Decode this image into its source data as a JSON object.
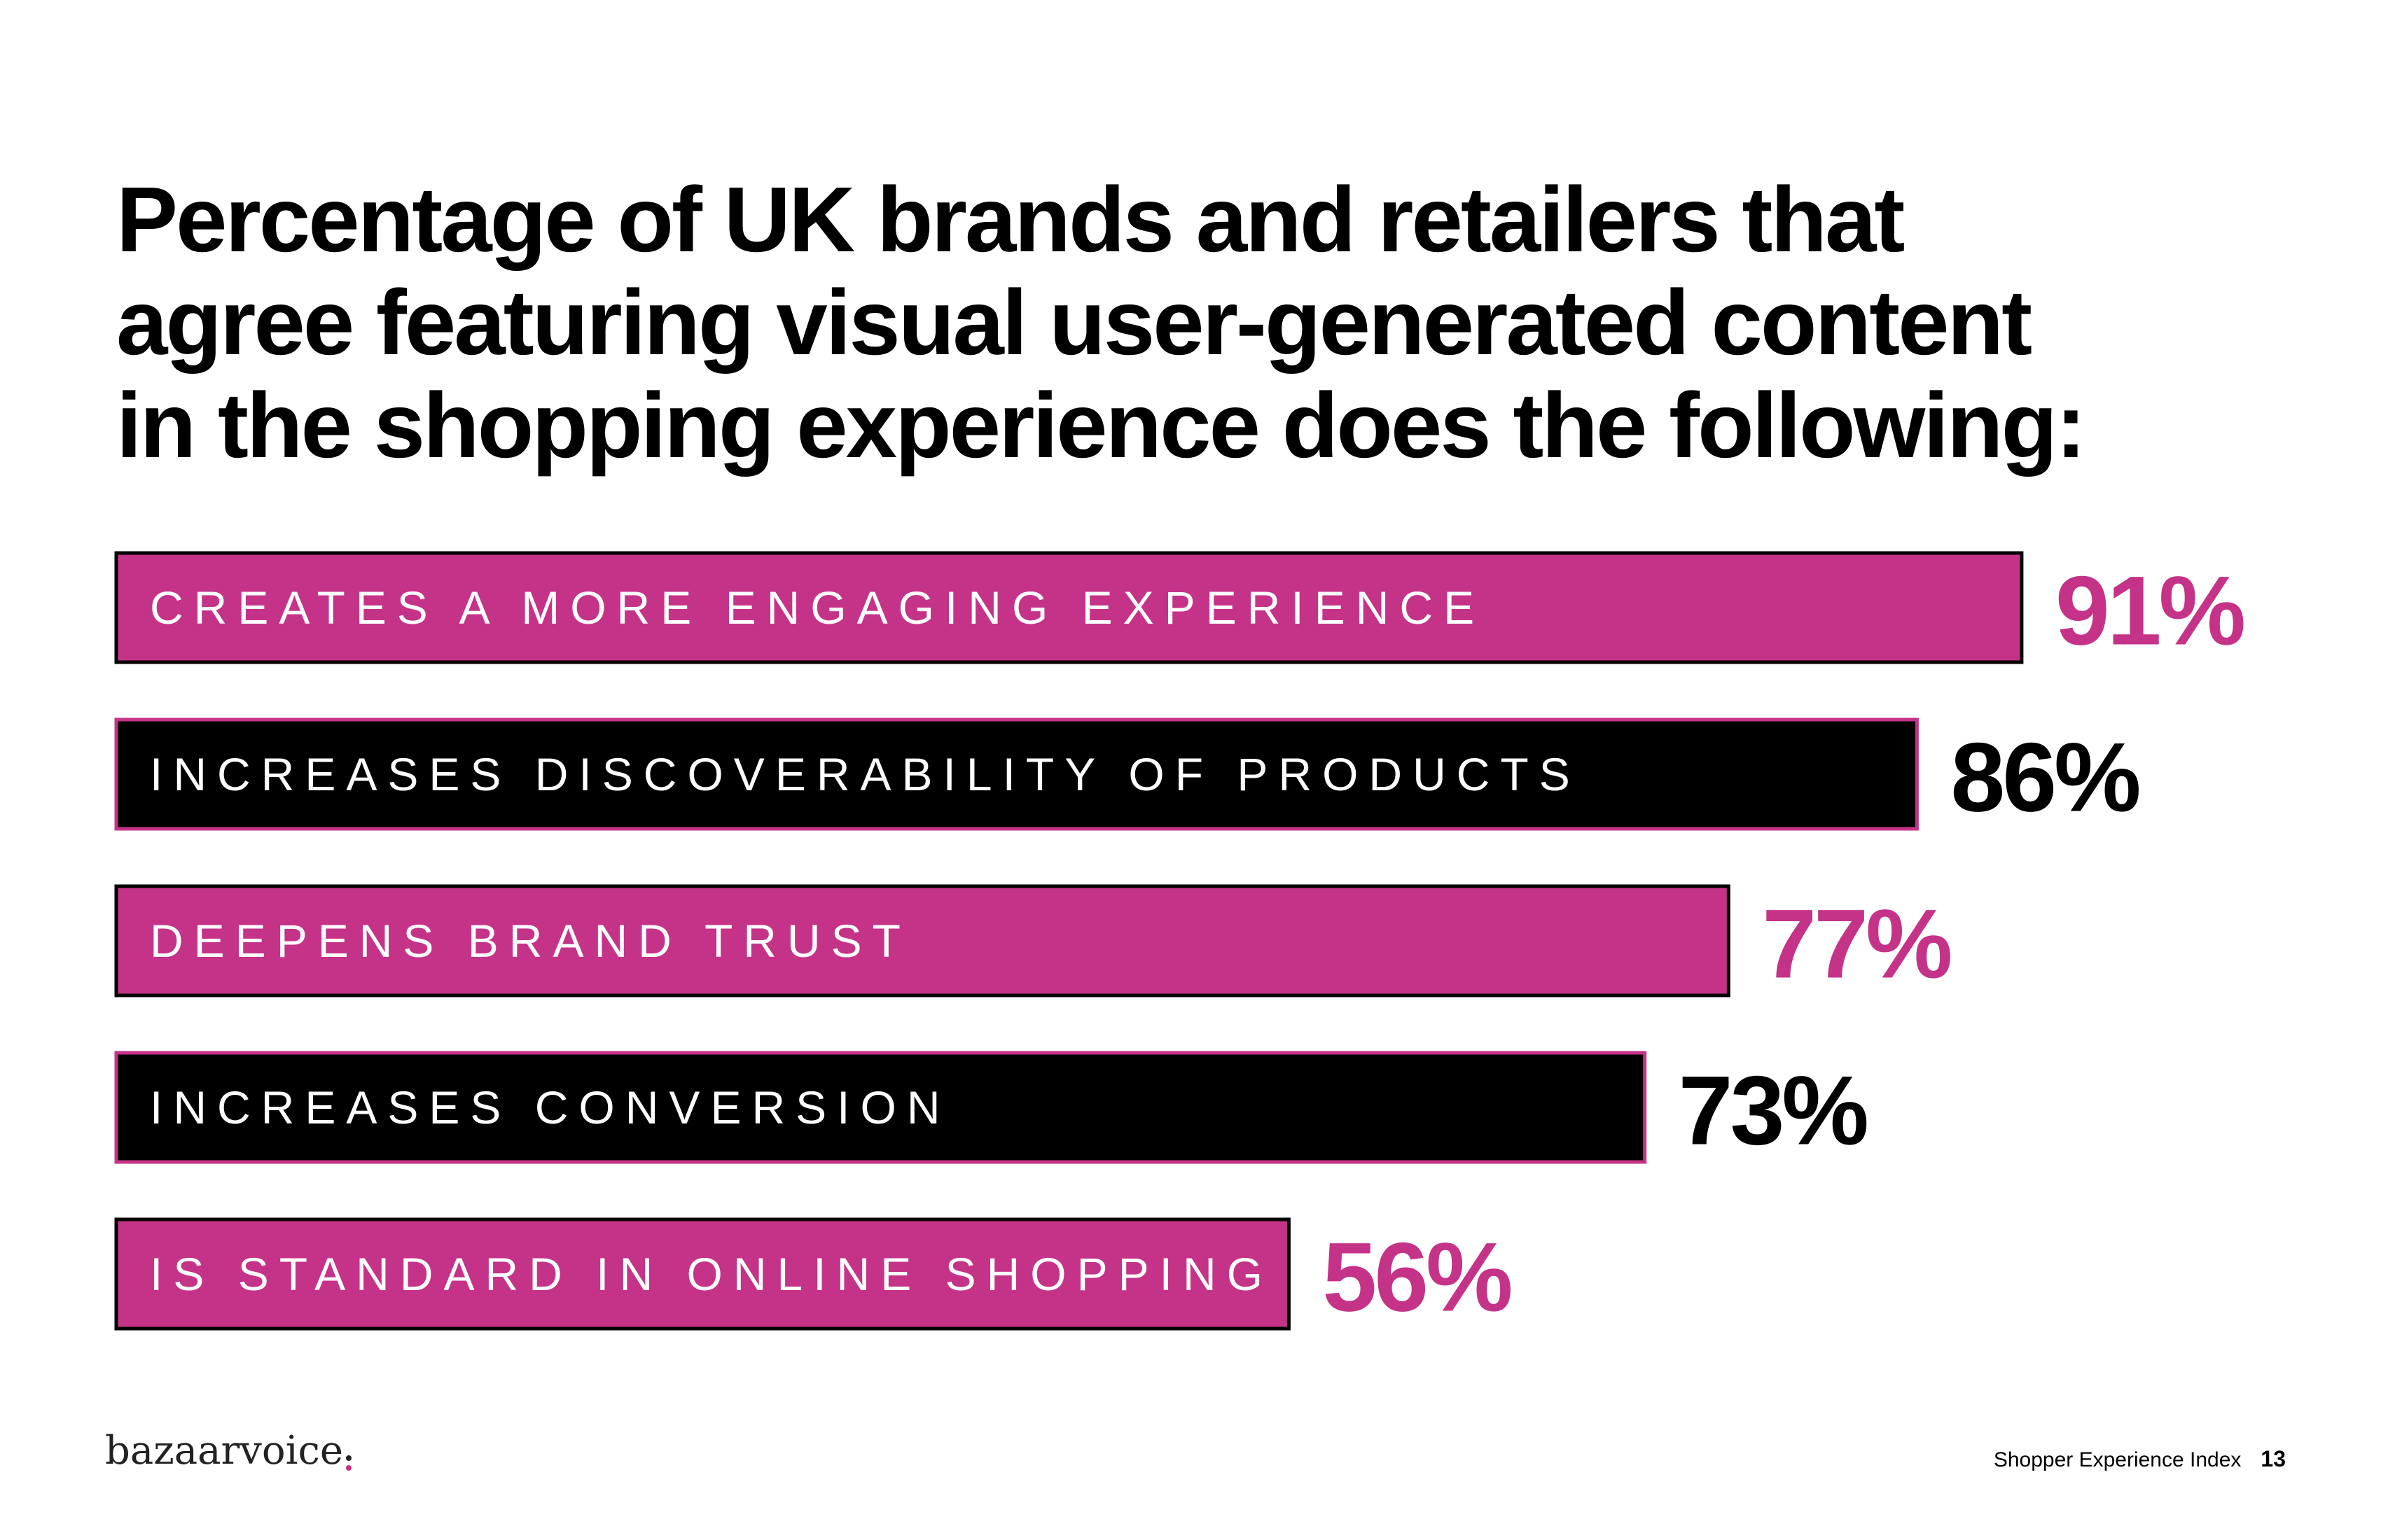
{
  "colors": {
    "magenta": "#c53388",
    "black": "#000000",
    "white": "#ffffff"
  },
  "title_lines": [
    "Percentage of UK brands and retailers that",
    "agree featuring visual user-generated content",
    "in the shopping experience does the following:"
  ],
  "chart_data": {
    "type": "bar",
    "orientation": "horizontal",
    "categories": [
      "CREATES A MORE ENGAGING EXPERIENCE",
      "INCREASES DISCOVERABILITY OF PRODUCTS",
      "DEEPENS BRAND TRUST",
      "INCREASES CONVERSION",
      "IS STANDARD IN ONLINE SHOPPING"
    ],
    "values": [
      91,
      86,
      77,
      73,
      56
    ],
    "value_labels": [
      "91%",
      "86%",
      "77%",
      "73%",
      "56%"
    ],
    "bar_fill_colors": [
      "#c53388",
      "#000000",
      "#c53388",
      "#000000",
      "#c53388"
    ],
    "bar_border_colors": [
      "#000000",
      "#c53388",
      "#000000",
      "#c53388",
      "#000000"
    ],
    "value_label_colors": [
      "#c53388",
      "#000000",
      "#c53388",
      "#000000",
      "#c53388"
    ],
    "unit": "%",
    "xlim": [
      0,
      100
    ],
    "grid": false,
    "legend": "none"
  },
  "footer": {
    "logo_text": "bazaarvoice",
    "publication": "Shopper Experience Index",
    "page_number": "13"
  }
}
